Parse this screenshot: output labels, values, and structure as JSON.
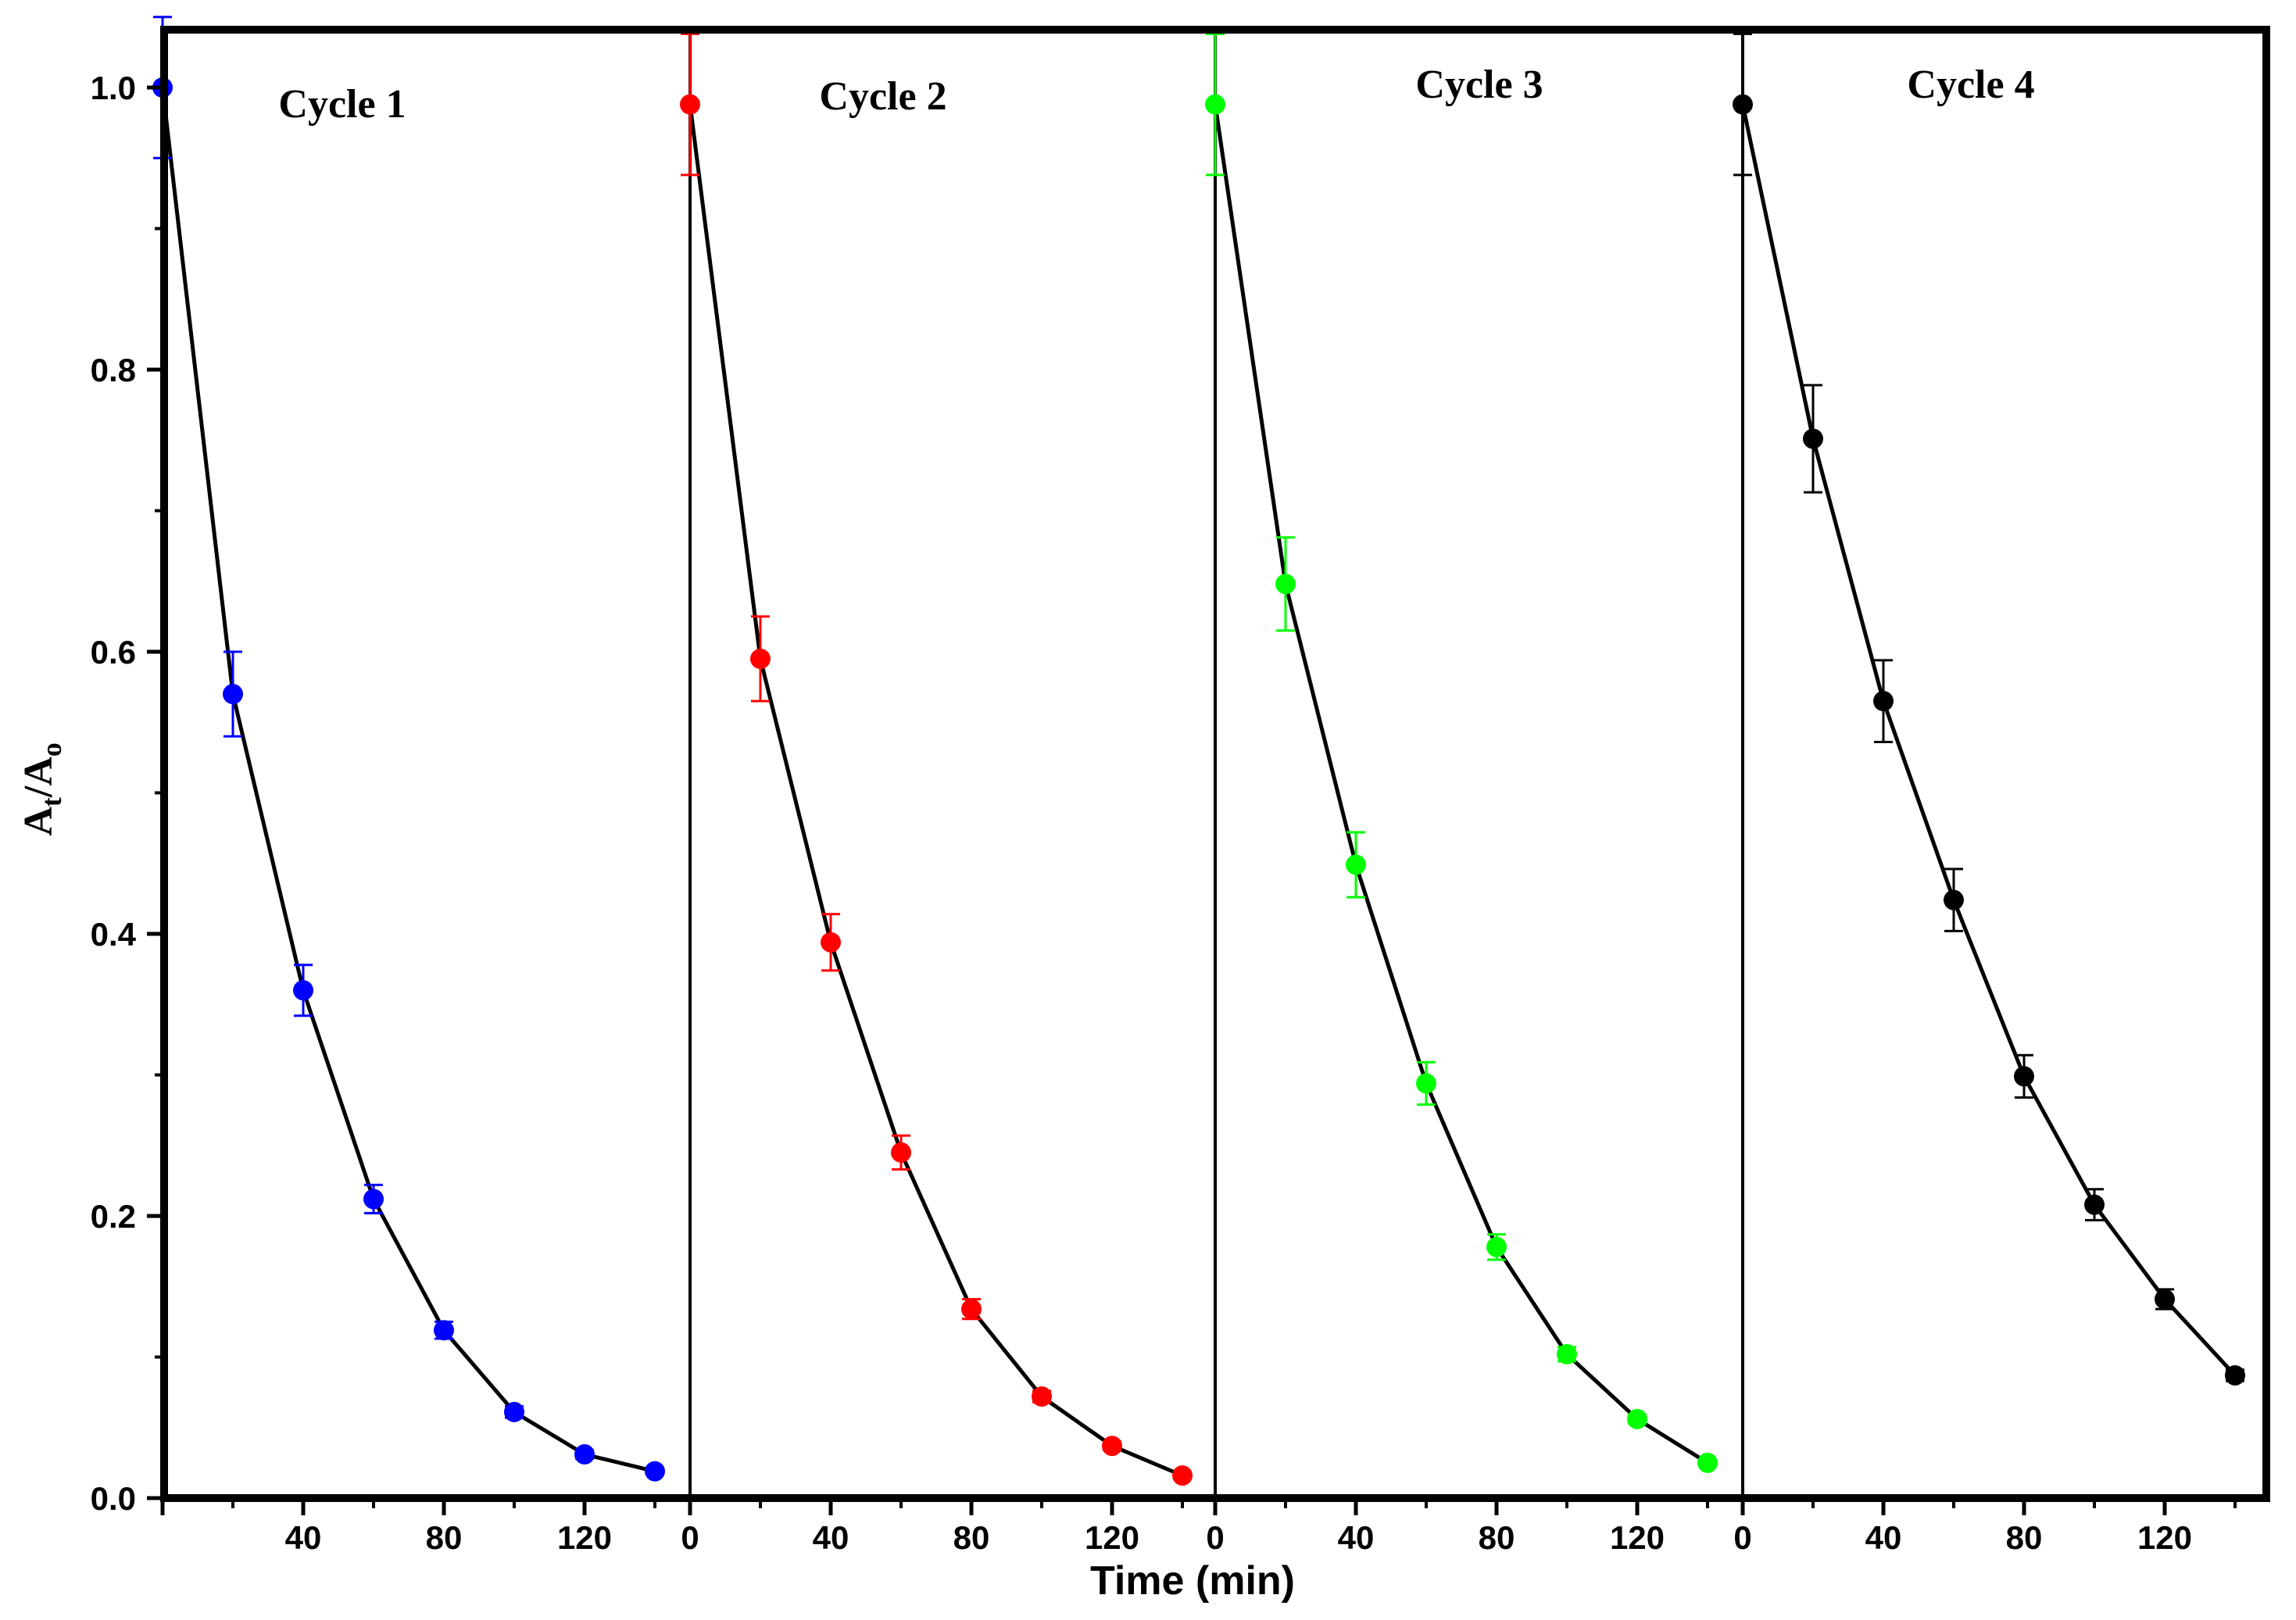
{
  "chart_data": {
    "type": "line",
    "title": "",
    "xlabel": "Time (min)",
    "ylabel": {
      "main": "A",
      "sub1": "t",
      "slash": "/A",
      "sub2": "o"
    },
    "ylim": [
      0.0,
      1.05
    ],
    "yticks": [
      "0.0",
      "0.2",
      "0.4",
      "0.6",
      "0.8",
      "1.0"
    ],
    "xlim_per_panel": [
      -2,
      147
    ],
    "x": [
      0,
      20,
      40,
      60,
      80,
      100,
      120,
      140
    ],
    "series": [
      {
        "name": "Cycle 1",
        "color": "#0000ff",
        "xticks": [
          "40",
          "80",
          "120"
        ],
        "values": [
          1.0,
          0.57,
          0.36,
          0.212,
          0.119,
          0.061,
          0.031,
          0.019
        ],
        "errors": [
          0.05,
          0.03,
          0.018,
          0.01,
          0.006,
          0.004,
          0.003,
          0.002
        ]
      },
      {
        "name": "Cycle 2",
        "color": "#ff0000",
        "xticks": [
          "0",
          "40",
          "80",
          "120"
        ],
        "values": [
          0.988,
          0.595,
          0.394,
          0.245,
          0.134,
          0.072,
          0.037,
          0.016
        ],
        "errors": [
          0.05,
          0.03,
          0.02,
          0.012,
          0.007,
          0.004,
          0.003,
          0.002
        ]
      },
      {
        "name": "Cycle 3",
        "color": "#00ff00",
        "xticks": [
          "0",
          "40",
          "80",
          "120"
        ],
        "values": [
          0.988,
          0.648,
          0.449,
          0.294,
          0.178,
          0.102,
          0.056,
          0.025
        ],
        "errors": [
          0.05,
          0.033,
          0.023,
          0.015,
          0.009,
          0.005,
          0.003,
          0.002
        ]
      },
      {
        "name": "Cycle 4",
        "color": "#000000",
        "xticks": [
          "0",
          "40",
          "80",
          "120"
        ],
        "values": [
          0.988,
          0.751,
          0.565,
          0.424,
          0.299,
          0.208,
          0.141,
          0.087
        ],
        "errors": [
          0.05,
          0.038,
          0.029,
          0.022,
          0.015,
          0.011,
          0.007,
          0.004
        ]
      }
    ]
  }
}
